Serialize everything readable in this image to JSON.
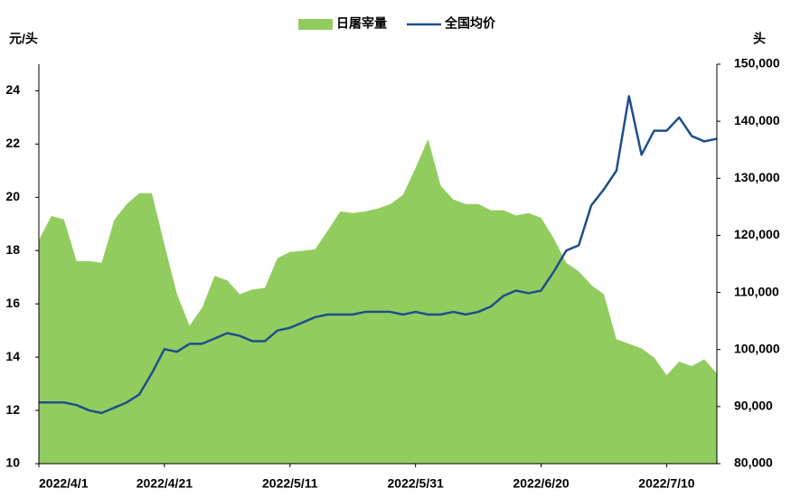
{
  "chart_data": {
    "type": "area-line",
    "y_label": "元/头",
    "y2_label": "头",
    "categories": [
      "2022/4/1",
      null,
      null,
      null,
      null,
      null,
      null,
      null,
      null,
      null,
      "2022/4/21",
      null,
      null,
      null,
      null,
      null,
      null,
      null,
      null,
      null,
      "2022/5/11",
      null,
      null,
      null,
      null,
      null,
      null,
      null,
      null,
      null,
      "2022/5/31",
      null,
      null,
      null,
      null,
      null,
      null,
      null,
      null,
      null,
      "2022/6/20",
      null,
      null,
      null,
      null,
      null,
      null,
      null,
      null,
      null,
      "2022/7/10",
      null,
      null,
      null,
      null
    ],
    "series": [
      {
        "name": "日屠宰量",
        "color": "#92cc5f",
        "kind": "area",
        "axis": "y2",
        "values": [
          119200,
          123400,
          122800,
          115500,
          115500,
          115200,
          122700,
          125500,
          127400,
          127400,
          118400,
          109700,
          104200,
          107300,
          112900,
          112100,
          109700,
          110500,
          110800,
          116000,
          117100,
          117300,
          117600,
          120800,
          124200,
          123900,
          124200,
          124700,
          125500,
          127100,
          131800,
          136900,
          128700,
          126300,
          125500,
          125500,
          124400,
          124400,
          123500,
          123900,
          123100,
          119500,
          115200,
          113700,
          111300,
          109700,
          101800,
          101000,
          100200,
          98600,
          95500,
          97900,
          97100,
          98300,
          95800
        ]
      },
      {
        "name": "全国均价",
        "color": "#1f4e8c",
        "kind": "line",
        "axis": "y",
        "values": [
          12.3,
          12.3,
          12.3,
          12.2,
          12.0,
          11.9,
          12.1,
          12.3,
          12.6,
          13.4,
          14.3,
          14.2,
          14.5,
          14.5,
          14.7,
          14.9,
          14.8,
          14.6,
          14.6,
          15.0,
          15.1,
          15.3,
          15.5,
          15.6,
          15.6,
          15.6,
          15.7,
          15.7,
          15.7,
          15.6,
          15.7,
          15.6,
          15.6,
          15.7,
          15.6,
          15.7,
          15.9,
          16.3,
          16.5,
          16.4,
          16.5,
          17.2,
          18.0,
          18.2,
          19.7,
          20.3,
          21.0,
          23.8,
          21.6,
          22.5,
          22.5,
          23.0,
          22.3,
          22.1,
          22.2
        ]
      }
    ],
    "ylim": [
      10,
      25
    ],
    "yticks": [
      10,
      12,
      14,
      16,
      18,
      20,
      22,
      24
    ],
    "y2lim": [
      80000,
      150000
    ],
    "y2ticks": [
      {
        "value": 80000,
        "label": "80,000"
      },
      {
        "value": 90000,
        "label": "90,000"
      },
      {
        "value": 100000,
        "label": "100,000"
      },
      {
        "value": 110000,
        "label": "110,000"
      },
      {
        "value": 120000,
        "label": "120,000"
      },
      {
        "value": 130000,
        "label": "130,000"
      },
      {
        "value": 140000,
        "label": "140,000"
      },
      {
        "value": 150000,
        "label": "150,000"
      }
    ],
    "grid": false,
    "legend": "top"
  }
}
